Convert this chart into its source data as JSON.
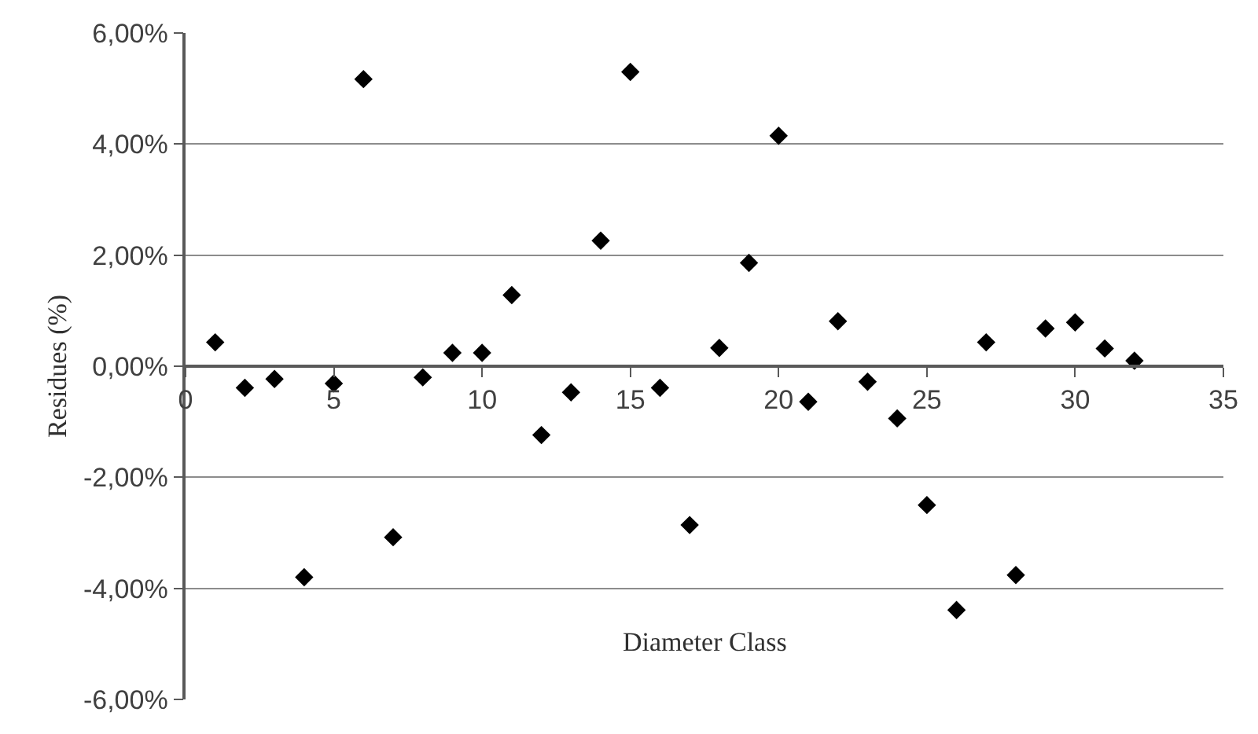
{
  "chart_data": {
    "type": "scatter",
    "xlabel": "Diameter Class",
    "ylabel": "Residues (%)",
    "x": [
      1,
      2,
      3,
      4,
      5,
      6,
      7,
      8,
      9,
      10,
      11,
      12,
      13,
      14,
      15,
      16,
      17,
      18,
      19,
      20,
      21,
      22,
      23,
      24,
      25,
      26,
      27,
      28,
      29,
      30,
      31,
      32
    ],
    "series": [
      {
        "color": "#000000",
        "values": [
          0.43,
          -0.39,
          -0.23,
          -3.8,
          -0.31,
          5.17,
          -3.08,
          -0.2,
          0.24,
          0.24,
          1.28,
          -1.24,
          -0.47,
          2.26,
          5.3,
          -0.39,
          -2.86,
          0.33,
          1.86,
          4.15,
          -0.64,
          0.81,
          -0.28,
          -0.94,
          -2.5,
          -4.39,
          0.43,
          -3.76,
          0.68,
          0.79,
          0.32,
          0.1
        ]
      }
    ],
    "xlim": [
      0,
      35
    ],
    "xticks": [
      0,
      5,
      10,
      15,
      20,
      25,
      30,
      35
    ],
    "ylim": [
      -6,
      6
    ],
    "yticks": [
      {
        "value": -6,
        "label": "-6,00%"
      },
      {
        "value": -4,
        "label": "-4,00%"
      },
      {
        "value": -2,
        "label": "-2,00%"
      },
      {
        "value": 0,
        "label": "0,00%"
      },
      {
        "value": 2,
        "label": "2,00%"
      },
      {
        "value": 4,
        "label": "4,00%"
      },
      {
        "value": 6,
        "label": "6,00%"
      }
    ],
    "grid": "y",
    "marker": "diamond"
  }
}
